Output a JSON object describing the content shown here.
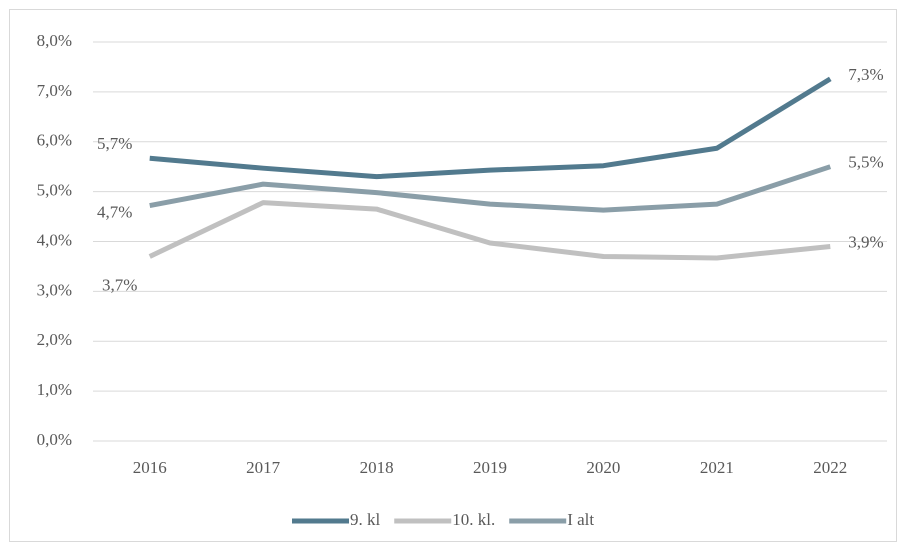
{
  "chart_data": {
    "type": "line",
    "categories": [
      "2016",
      "2017",
      "2018",
      "2019",
      "2020",
      "2021",
      "2022"
    ],
    "series": [
      {
        "name": "9. kl",
        "color": "#527a8e",
        "values": [
          5.67,
          5.47,
          5.3,
          5.43,
          5.52,
          5.87,
          7.26
        ],
        "value_labels": [
          "5,7%",
          null,
          null,
          null,
          null,
          null,
          "7,3%"
        ]
      },
      {
        "name": "10. kl.",
        "color": "#c0c0c0",
        "values": [
          3.7,
          4.78,
          4.65,
          3.97,
          3.7,
          3.67,
          3.9
        ],
        "value_labels": [
          "3,7%",
          null,
          null,
          null,
          null,
          null,
          "3,9%"
        ]
      },
      {
        "name": "I alt",
        "color": "#8a9ea8",
        "values": [
          4.72,
          5.15,
          4.98,
          4.75,
          4.63,
          4.75,
          5.5
        ],
        "value_labels": [
          "4,7%",
          null,
          null,
          null,
          null,
          null,
          "5,5%"
        ]
      }
    ],
    "ylim": [
      0,
      8
    ],
    "yticks": [
      {
        "value": 0,
        "label": "0,0%"
      },
      {
        "value": 1,
        "label": "1,0%"
      },
      {
        "value": 2,
        "label": "2,0%"
      },
      {
        "value": 3,
        "label": "3,0%"
      },
      {
        "value": 4,
        "label": "4,0%"
      },
      {
        "value": 5,
        "label": "5,0%"
      },
      {
        "value": 6,
        "label": "6,0%"
      },
      {
        "value": 7,
        "label": "7,0%"
      },
      {
        "value": 8,
        "label": "8,0%"
      }
    ],
    "grid": true,
    "legend": "bottom"
  }
}
